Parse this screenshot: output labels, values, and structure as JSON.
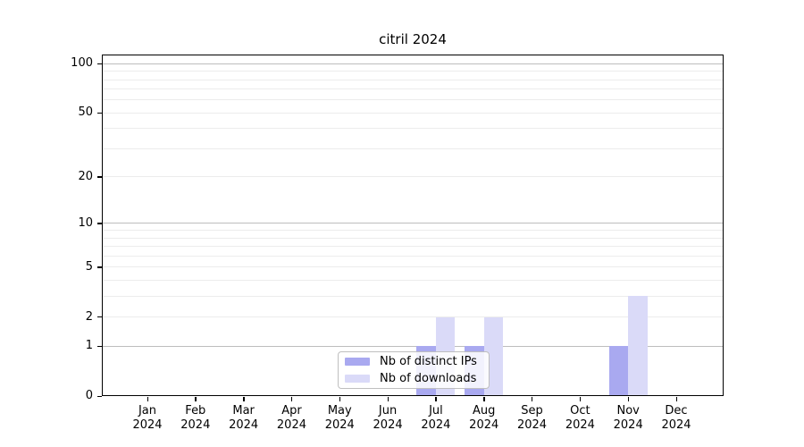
{
  "chart_data": {
    "type": "bar",
    "title": "citril 2024",
    "xlabel": "",
    "ylabel": "",
    "months": [
      "Jan",
      "Feb",
      "Mar",
      "Apr",
      "May",
      "Jun",
      "Jul",
      "Aug",
      "Sep",
      "Oct",
      "Nov",
      "Dec"
    ],
    "year_label": "2024",
    "series": [
      {
        "name": "Nb of distinct IPs",
        "color": "#a9a9f0",
        "values": [
          0,
          0,
          0,
          0,
          0,
          0,
          1,
          1,
          0,
          0,
          1,
          0
        ]
      },
      {
        "name": "Nb of downloads",
        "color": "#dadaf8",
        "values": [
          0,
          0,
          0,
          0,
          0,
          0,
          2,
          2,
          0,
          0,
          3,
          0
        ]
      }
    ],
    "yscale": "log1p",
    "ylim": [
      0,
      114
    ],
    "y_ticks": [
      0,
      1,
      2,
      5,
      10,
      20,
      50,
      100
    ],
    "y_minor_gridlines": [
      3,
      4,
      6,
      7,
      8,
      9,
      30,
      40,
      60,
      70,
      80,
      90
    ],
    "grid": true,
    "legend_position": "lower center",
    "colors": {
      "major_grid": "#bdbdbd",
      "minor_grid": "#ececec",
      "axis": "#000000",
      "background": "#ffffff"
    }
  }
}
